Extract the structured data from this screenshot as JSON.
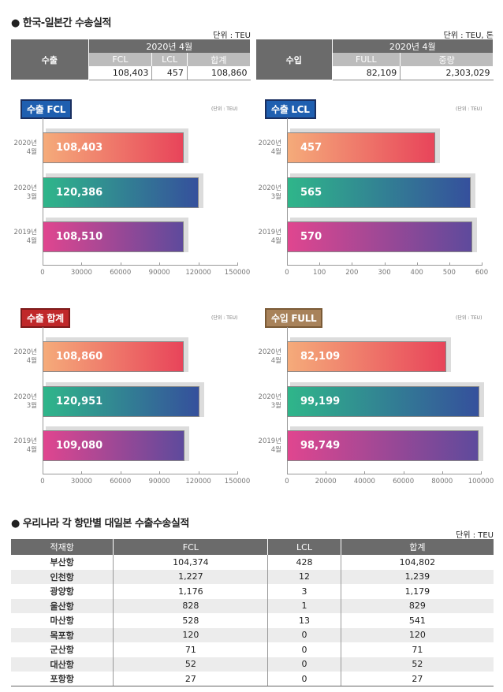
{
  "top": {
    "title": "● 한국-일본간 수송실적",
    "unit_left": "단위 : TEU",
    "unit_right": "단위 : TEU, 톤",
    "export": {
      "label": "수출",
      "period": "2020년 4월",
      "cols": [
        "FCL",
        "LCL",
        "합계"
      ],
      "values": [
        "108,403",
        "457",
        "108,860"
      ]
    },
    "import": {
      "label": "수입",
      "period": "2020년 4월",
      "cols": [
        "FULL",
        "중량"
      ],
      "values": [
        "82,109",
        "2,303,029"
      ]
    }
  },
  "chart_data": [
    {
      "type": "bar",
      "title": "수출 FCL",
      "unit": "(단위 : TEU)",
      "badge_color": "#1f5fb0",
      "categories": [
        "2020년\n4월",
        "2020년\n3월",
        "2019년\n4월"
      ],
      "values": [
        108403,
        120386,
        108510
      ],
      "labels": [
        "108,403",
        "120,386",
        "108,510"
      ],
      "xlim": [
        0,
        150000
      ],
      "ticks": [
        "0",
        "30000",
        "60000",
        "90000",
        "120000",
        "150000"
      ]
    },
    {
      "type": "bar",
      "title": "수출 LCL",
      "unit": "(단위 : TEU)",
      "badge_color": "#1f5fb0",
      "categories": [
        "2020년\n4월",
        "2020년\n3월",
        "2019년\n4월"
      ],
      "values": [
        457,
        565,
        570
      ],
      "labels": [
        "457",
        "565",
        "570"
      ],
      "xlim": [
        0,
        600
      ],
      "ticks": [
        "0",
        "100",
        "200",
        "300",
        "400",
        "500",
        "600"
      ]
    },
    {
      "type": "bar",
      "title": "수출 합계",
      "unit": "(단위 : TEU)",
      "badge_color": "#c0282a",
      "categories": [
        "2020년\n4월",
        "2020년\n3월",
        "2019년\n4월"
      ],
      "values": [
        108860,
        120951,
        109080
      ],
      "labels": [
        "108,860",
        "120,951",
        "109,080"
      ],
      "xlim": [
        0,
        150000
      ],
      "ticks": [
        "0",
        "30000",
        "60000",
        "90000",
        "120000",
        "150000"
      ]
    },
    {
      "type": "bar",
      "title": "수입 FULL",
      "unit": "(단위 : TEU)",
      "badge_color": "#a8825a",
      "categories": [
        "2020년\n4월",
        "2020년\n3월",
        "2019년\n4월"
      ],
      "values": [
        82109,
        99199,
        98749
      ],
      "labels": [
        "82,109",
        "99,199",
        "98,749"
      ],
      "xlim": [
        0,
        100000
      ],
      "ticks": [
        "0",
        "20000",
        "40000",
        "60000",
        "80000",
        "100000"
      ]
    }
  ],
  "ports": {
    "title": "● 우리나라 각 항만별 대일본 수출수송실적",
    "unit": "단위 : TEU",
    "headers": [
      "적재항",
      "FCL",
      "LCL",
      "합계"
    ],
    "rows": [
      [
        "부산항",
        "104,374",
        "428",
        "104,802"
      ],
      [
        "인천항",
        "1,227",
        "12",
        "1,239"
      ],
      [
        "광양항",
        "1,176",
        "3",
        "1,179"
      ],
      [
        "울산항",
        "828",
        "1",
        "829"
      ],
      [
        "마산항",
        "528",
        "13",
        "541"
      ],
      [
        "목포항",
        "120",
        "0",
        "120"
      ],
      [
        "군산항",
        "71",
        "0",
        "71"
      ],
      [
        "대산항",
        "52",
        "0",
        "52"
      ],
      [
        "포항항",
        "27",
        "0",
        "27"
      ]
    ]
  }
}
